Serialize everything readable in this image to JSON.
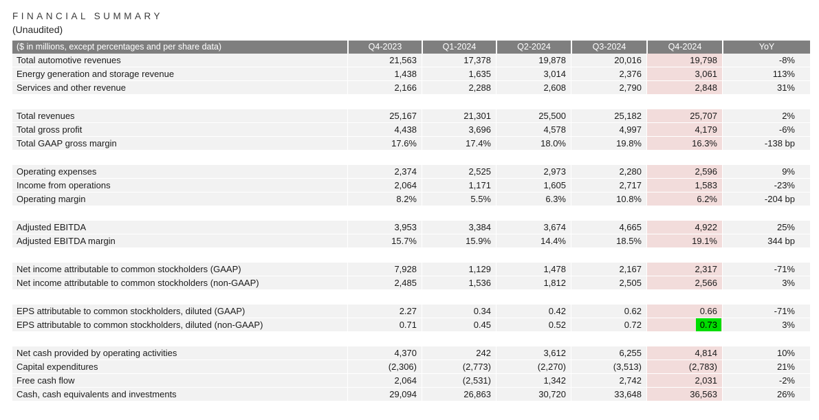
{
  "page": {
    "title": "FINANCIAL SUMMARY",
    "subtitle": "(Unaudited)"
  },
  "colors": {
    "header_bg": "#7f7f7f",
    "header_text": "#ffffff",
    "row_bg": "#f2f2f2",
    "q4_2024_column_bg": "#f2dcdb",
    "highlight_green": "#00dd00",
    "spacer_bg": "#ffffff"
  },
  "table": {
    "header": {
      "label": "($ in millions, except percentages and per share data)",
      "columns": [
        "Q4-2023",
        "Q1-2024",
        "Q2-2024",
        "Q3-2024",
        "Q4-2024",
        "YoY"
      ]
    },
    "highlighted_column": "Q4-2024",
    "sections": [
      {
        "rows": [
          {
            "label": "Total automotive revenues",
            "values": [
              "21,563",
              "17,378",
              "19,878",
              "20,016",
              "19,798",
              "-8%"
            ]
          },
          {
            "label": "Energy generation and storage revenue",
            "values": [
              "1,438",
              "1,635",
              "3,014",
              "2,376",
              "3,061",
              "113%"
            ]
          },
          {
            "label": "Services and other revenue",
            "values": [
              "2,166",
              "2,288",
              "2,608",
              "2,790",
              "2,848",
              "31%"
            ]
          }
        ]
      },
      {
        "rows": [
          {
            "label": "Total revenues",
            "values": [
              "25,167",
              "21,301",
              "25,500",
              "25,182",
              "25,707",
              "2%"
            ]
          },
          {
            "label": "Total gross profit",
            "values": [
              "4,438",
              "3,696",
              "4,578",
              "4,997",
              "4,179",
              "-6%"
            ]
          },
          {
            "label": "Total GAAP gross margin",
            "values": [
              "17.6%",
              "17.4%",
              "18.0%",
              "19.8%",
              "16.3%",
              "-138 bp"
            ]
          }
        ]
      },
      {
        "rows": [
          {
            "label": "Operating expenses",
            "values": [
              "2,374",
              "2,525",
              "2,973",
              "2,280",
              "2,596",
              "9%"
            ]
          },
          {
            "label": "Income from operations",
            "values": [
              "2,064",
              "1,171",
              "1,605",
              "2,717",
              "1,583",
              "-23%"
            ]
          },
          {
            "label": "Operating margin",
            "values": [
              "8.2%",
              "5.5%",
              "6.3%",
              "10.8%",
              "6.2%",
              "-204 bp"
            ]
          }
        ]
      },
      {
        "rows": [
          {
            "label": "Adjusted EBITDA",
            "values": [
              "3,953",
              "3,384",
              "3,674",
              "4,665",
              "4,922",
              "25%"
            ]
          },
          {
            "label": "Adjusted EBITDA margin",
            "values": [
              "15.7%",
              "15.9%",
              "14.4%",
              "18.5%",
              "19.1%",
              "344 bp"
            ]
          }
        ]
      },
      {
        "rows": [
          {
            "label": "Net income attributable to common stockholders (GAAP)",
            "values": [
              "7,928",
              "1,129",
              "1,478",
              "2,167",
              "2,317",
              "-71%"
            ]
          },
          {
            "label": "Net income attributable to common stockholders (non-GAAP)",
            "values": [
              "2,485",
              "1,536",
              "1,812",
              "2,505",
              "2,566",
              "3%"
            ]
          }
        ]
      },
      {
        "rows": [
          {
            "label": "EPS attributable to common stockholders, diluted (GAAP)",
            "values": [
              "2.27",
              "0.34",
              "0.42",
              "0.62",
              "0.66",
              "-71%"
            ]
          },
          {
            "label": "EPS attributable to common stockholders, diluted (non-GAAP)",
            "values": [
              "0.71",
              "0.45",
              "0.52",
              "0.72",
              "0.73",
              "3%"
            ],
            "highlight": {
              "col": 4,
              "color": "#00dd00"
            }
          }
        ]
      },
      {
        "rows": [
          {
            "label": "Net cash provided by operating activities",
            "values": [
              "4,370",
              "242",
              "3,612",
              "6,255",
              "4,814",
              "10%"
            ]
          },
          {
            "label": "Capital expenditures",
            "values": [
              "(2,306)",
              "(2,773)",
              "(2,270)",
              "(3,513)",
              "(2,783)",
              "21%"
            ]
          },
          {
            "label": "Free cash flow",
            "values": [
              "2,064",
              "(2,531)",
              "1,342",
              "2,742",
              "2,031",
              "-2%"
            ]
          },
          {
            "label": "Cash, cash equivalents and investments",
            "values": [
              "29,094",
              "26,863",
              "30,720",
              "33,648",
              "36,563",
              "26%"
            ]
          }
        ]
      }
    ]
  }
}
